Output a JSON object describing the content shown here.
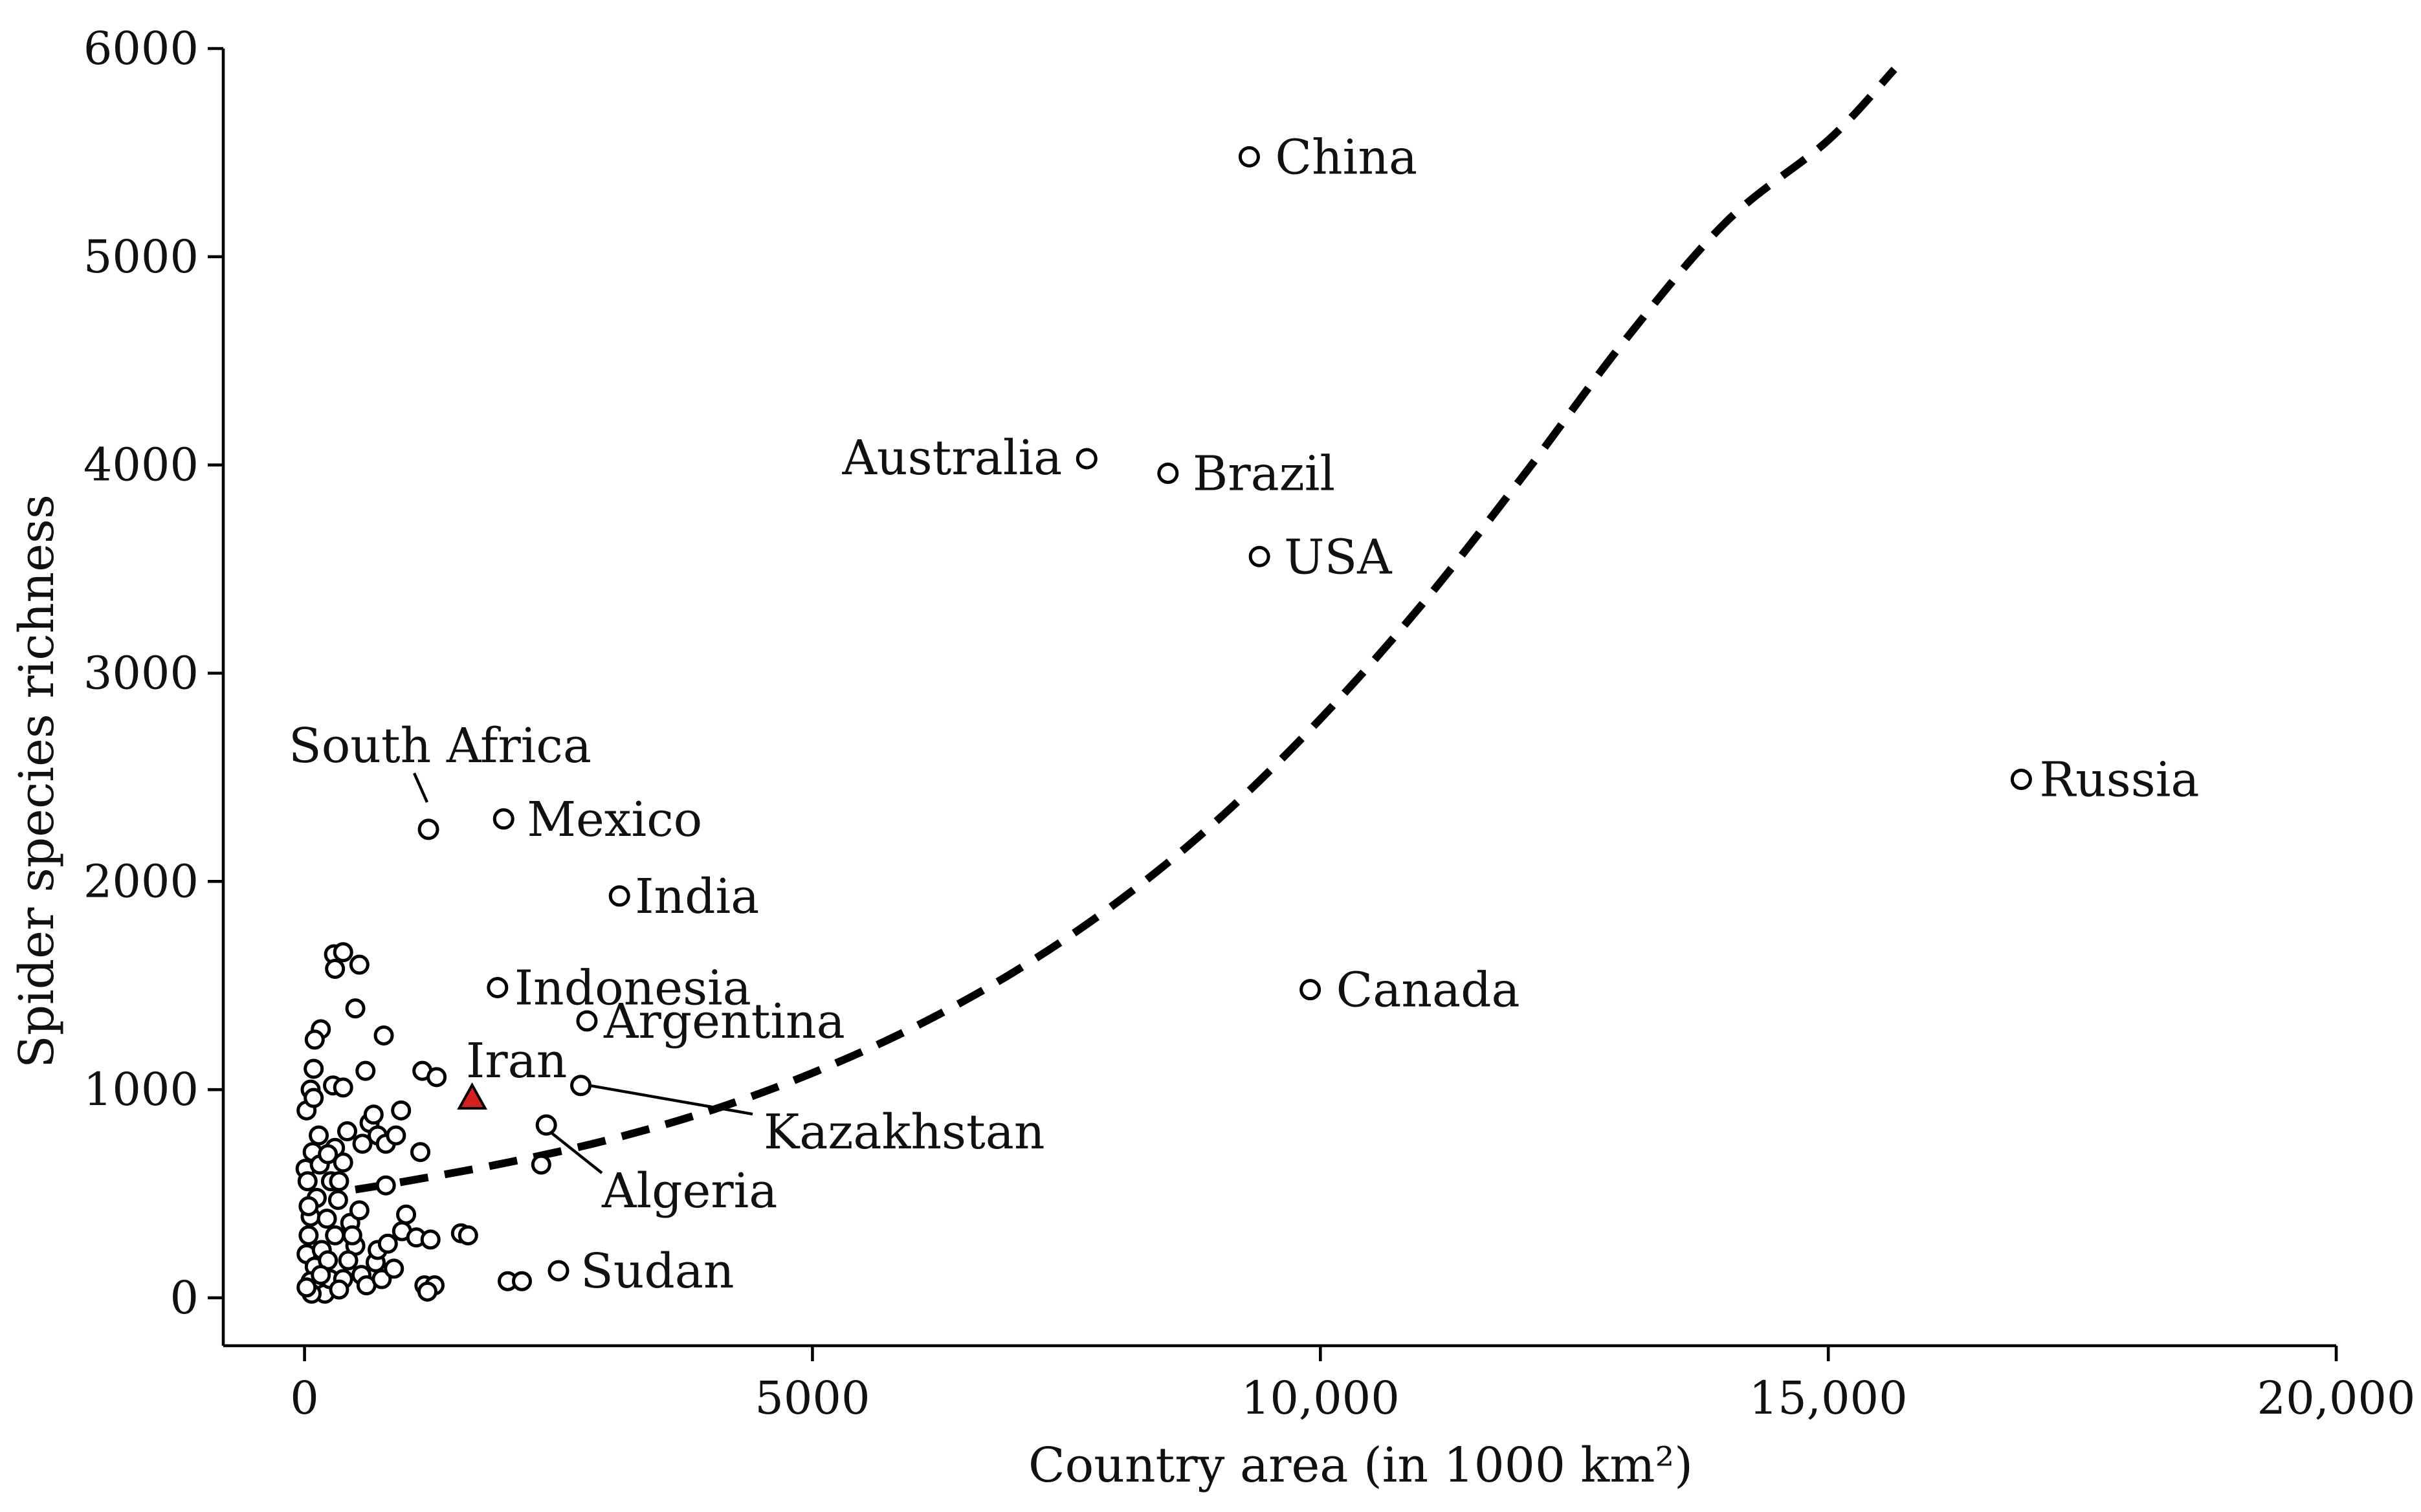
{
  "chart_data": {
    "type": "scatter",
    "title": "",
    "xlabel": "Country area (in 1000 km²)",
    "ylabel": "Spider species richness",
    "xlim": [
      -800,
      20000
    ],
    "ylim": [
      -230,
      6000
    ],
    "x_ticks": [
      {
        "value": 0,
        "label": "0"
      },
      {
        "value": 5000,
        "label": "5000"
      },
      {
        "value": 10000,
        "label": "10,000"
      },
      {
        "value": 15000,
        "label": "15,000"
      },
      {
        "value": 20000,
        "label": "20,000"
      }
    ],
    "y_ticks": [
      {
        "value": 0,
        "label": "0"
      },
      {
        "value": 1000,
        "label": "1000"
      },
      {
        "value": 2000,
        "label": "2000"
      },
      {
        "value": 3000,
        "label": "3000"
      },
      {
        "value": 4000,
        "label": "4000"
      },
      {
        "value": 5000,
        "label": "5000"
      },
      {
        "value": 6000,
        "label": "6000"
      }
    ],
    "grid": false,
    "labeled_points": [
      {
        "label": "China",
        "x": 9300,
        "y": 5480,
        "marker": "circle"
      },
      {
        "label": "Australia",
        "x": 7700,
        "y": 4030,
        "marker": "circle"
      },
      {
        "label": "Brazil",
        "x": 8500,
        "y": 3960,
        "marker": "circle"
      },
      {
        "label": "USA",
        "x": 9400,
        "y": 3560,
        "marker": "circle"
      },
      {
        "label": "Russia",
        "x": 16900,
        "y": 2490,
        "marker": "circle"
      },
      {
        "label": "South Africa",
        "x": 1220,
        "y": 2250,
        "marker": "circle"
      },
      {
        "label": "Mexico",
        "x": 1960,
        "y": 2300,
        "marker": "circle"
      },
      {
        "label": "India",
        "x": 3100,
        "y": 1930,
        "marker": "circle"
      },
      {
        "label": "Canada",
        "x": 9900,
        "y": 1480,
        "marker": "circle"
      },
      {
        "label": "Indonesia",
        "x": 1900,
        "y": 1490,
        "marker": "circle"
      },
      {
        "label": "Argentina",
        "x": 2780,
        "y": 1330,
        "marker": "circle"
      },
      {
        "label": "Iran",
        "x": 1650,
        "y": 960,
        "marker": "triangle",
        "color": "#d62020"
      },
      {
        "label": "Kazakhstan",
        "x": 2720,
        "y": 1020,
        "marker": "circle"
      },
      {
        "label": "Algeria",
        "x": 2380,
        "y": 830,
        "marker": "circle"
      },
      {
        "label": "Sudan",
        "x": 2500,
        "y": 130,
        "marker": "circle"
      }
    ],
    "unlabeled_points": [
      [
        60,
        1000
      ],
      [
        90,
        1100
      ],
      [
        160,
        1290
      ],
      [
        100,
        1240
      ],
      [
        290,
        1650
      ],
      [
        380,
        1660
      ],
      [
        300,
        1580
      ],
      [
        540,
        1600
      ],
      [
        500,
        1390
      ],
      [
        780,
        1260
      ],
      [
        600,
        1090
      ],
      [
        1160,
        1090
      ],
      [
        1300,
        1060
      ],
      [
        280,
        1020
      ],
      [
        380,
        1010
      ],
      [
        20,
        900
      ],
      [
        90,
        960
      ],
      [
        140,
        780
      ],
      [
        80,
        700
      ],
      [
        10,
        620
      ],
      [
        30,
        560
      ],
      [
        120,
        480
      ],
      [
        60,
        390
      ],
      [
        40,
        300
      ],
      [
        20,
        210
      ],
      [
        100,
        150
      ],
      [
        60,
        80
      ],
      [
        120,
        40
      ],
      [
        200,
        20
      ],
      [
        250,
        90
      ],
      [
        170,
        230
      ],
      [
        220,
        380
      ],
      [
        330,
        470
      ],
      [
        260,
        560
      ],
      [
        380,
        650
      ],
      [
        300,
        720
      ],
      [
        420,
        800
      ],
      [
        450,
        360
      ],
      [
        500,
        250
      ],
      [
        430,
        180
      ],
      [
        380,
        90
      ],
      [
        340,
        40
      ],
      [
        560,
        110
      ],
      [
        610,
        60
      ],
      [
        700,
        170
      ],
      [
        720,
        230
      ],
      [
        760,
        90
      ],
      [
        820,
        260
      ],
      [
        880,
        140
      ],
      [
        960,
        320
      ],
      [
        1000,
        400
      ],
      [
        1100,
        290
      ],
      [
        1240,
        280
      ],
      [
        1180,
        60
      ],
      [
        1280,
        60
      ],
      [
        1210,
        30
      ],
      [
        570,
        740
      ],
      [
        640,
        840
      ],
      [
        680,
        880
      ],
      [
        720,
        780
      ],
      [
        800,
        740
      ],
      [
        900,
        780
      ],
      [
        950,
        900
      ],
      [
        1140,
        700
      ],
      [
        800,
        540
      ],
      [
        540,
        420
      ],
      [
        470,
        300
      ],
      [
        300,
        300
      ],
      [
        230,
        180
      ],
      [
        160,
        110
      ],
      [
        70,
        20
      ],
      [
        20,
        50
      ],
      [
        40,
        440
      ],
      [
        150,
        640
      ],
      [
        230,
        690
      ],
      [
        340,
        560
      ],
      [
        1540,
        310
      ],
      [
        1610,
        300
      ],
      [
        2000,
        80
      ],
      [
        2140,
        80
      ],
      [
        2330,
        640
      ]
    ],
    "fit_line": {
      "style": "dashed",
      "points": [
        [
          500,
          520
        ],
        [
          1000,
          560
        ],
        [
          2000,
          650
        ],
        [
          3000,
          760
        ],
        [
          4000,
          900
        ],
        [
          5000,
          1080
        ],
        [
          6000,
          1300
        ],
        [
          7000,
          1570
        ],
        [
          8000,
          1900
        ],
        [
          9000,
          2300
        ],
        [
          10000,
          2780
        ],
        [
          11000,
          3330
        ],
        [
          12000,
          3950
        ],
        [
          13000,
          4600
        ],
        [
          14000,
          5170
        ],
        [
          15000,
          5560
        ],
        [
          15650,
          5900
        ]
      ]
    }
  }
}
